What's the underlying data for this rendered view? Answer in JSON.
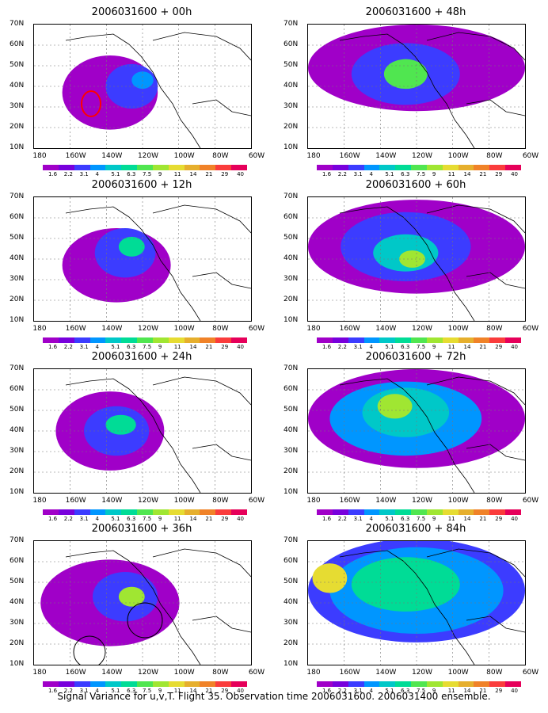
{
  "panels": [
    {
      "title": "2006031600 + 00h"
    },
    {
      "title": "2006031600 + 48h"
    },
    {
      "title": "2006031600 + 12h"
    },
    {
      "title": "2006031600 + 60h"
    },
    {
      "title": "2006031600 + 24h"
    },
    {
      "title": "2006031600 + 72h"
    },
    {
      "title": "2006031600 + 36h"
    },
    {
      "title": "2006031600 + 84h"
    }
  ],
  "lat_labels": [
    "70N",
    "60N",
    "50N",
    "40N",
    "30N",
    "20N",
    "10N"
  ],
  "lon_labels": [
    "180",
    "160W",
    "140W",
    "120W",
    "100W",
    "80W",
    "60W"
  ],
  "colorbar": {
    "labels": [
      "1.6",
      "2.2",
      "3.1",
      "4",
      "5.1",
      "6.3",
      "7.5",
      "9",
      "11",
      "14",
      "21",
      "29",
      "40"
    ],
    "colors": [
      "#a000c8",
      "#7800dc",
      "#3c3cff",
      "#0096ff",
      "#00c8c8",
      "#00dc96",
      "#50e650",
      "#a0e632",
      "#e6dc32",
      "#e6af2d",
      "#f08228",
      "#fa3c3c",
      "#e6005a"
    ]
  },
  "footer": "Signal Variance for u,v,T. Flight 35. Observation time 2006031600. 2006031400 ensemble."
}
